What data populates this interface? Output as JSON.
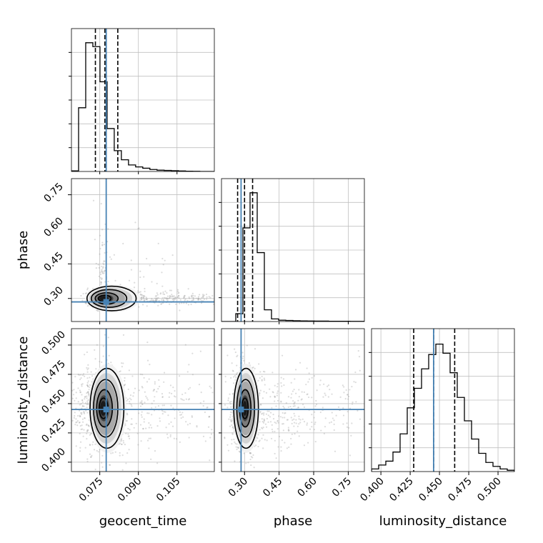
{
  "chart_data": {
    "type": "corner",
    "parameters": [
      "geocent_time",
      "phase",
      "luminosity_distance"
    ],
    "truths": {
      "geocent_time": 0.0775,
      "phase": 0.285,
      "luminosity_distance": 0.445
    },
    "colors": {
      "truth": "#4682b4",
      "hist": "#000000",
      "grid": "#c0c0c0",
      "points": "#9a9a9a"
    },
    "ranges": {
      "geocent_time": [
        0.064,
        0.1195
      ],
      "phase": [
        0.2,
        0.82
      ],
      "luminosity_distance": [
        0.392,
        0.514
      ]
    },
    "ticks": {
      "geocent_time": [
        0.075,
        0.09,
        0.105
      ],
      "phase": [
        0.3,
        0.45,
        0.6,
        0.75
      ],
      "luminosity_distance": [
        0.4,
        0.425,
        0.45,
        0.475,
        0.5
      ]
    },
    "tick_labels": {
      "geocent_time": [
        "0.075",
        "0.090",
        "0.105"
      ],
      "phase": [
        "0.30",
        "0.45",
        "0.60",
        "0.75"
      ],
      "luminosity_distance": [
        "0.400",
        "0.425",
        "0.450",
        "0.475",
        "0.500"
      ]
    },
    "quantiles": {
      "geocent_time": [
        0.0733,
        0.077,
        0.082
      ],
      "phase": [
        0.27,
        0.3,
        0.335
      ],
      "luminosity_distance": [
        0.428,
        0.445,
        0.463
      ]
    },
    "marginals": {
      "geocent_time": {
        "edges_start": 0.064,
        "bin_width": 0.00277,
        "counts": [
          0.005,
          0.49,
          0.99,
          0.96,
          0.69,
          0.33,
          0.16,
          0.09,
          0.05,
          0.035,
          0.025,
          0.015,
          0.01,
          0.008,
          0.006,
          0.004,
          0.002,
          0.001,
          0.0,
          0.0
        ]
      },
      "phase": {
        "edges_start": 0.2,
        "bin_width": 0.031,
        "counts": [
          0.0,
          0.0,
          0.06,
          0.72,
          0.99,
          0.53,
          0.09,
          0.02,
          0.01,
          0.008,
          0.006,
          0.005,
          0.004,
          0.003,
          0.003,
          0.002,
          0.002,
          0.002,
          0.001,
          0.001
        ]
      },
      "luminosity_distance": {
        "edges_start": 0.392,
        "bin_width": 0.0061,
        "counts": [
          0.02,
          0.05,
          0.08,
          0.15,
          0.29,
          0.49,
          0.64,
          0.79,
          0.9,
          0.98,
          0.91,
          0.76,
          0.57,
          0.39,
          0.25,
          0.14,
          0.07,
          0.04,
          0.02,
          0.01
        ]
      }
    },
    "pair_peaks": {
      "phase_vs_geocent_time": [
        0.076,
        0.3
      ],
      "luminosity_distance_vs_geocent_time": [
        0.076,
        0.446
      ],
      "luminosity_distance_vs_phase": [
        0.3,
        0.446
      ]
    }
  }
}
